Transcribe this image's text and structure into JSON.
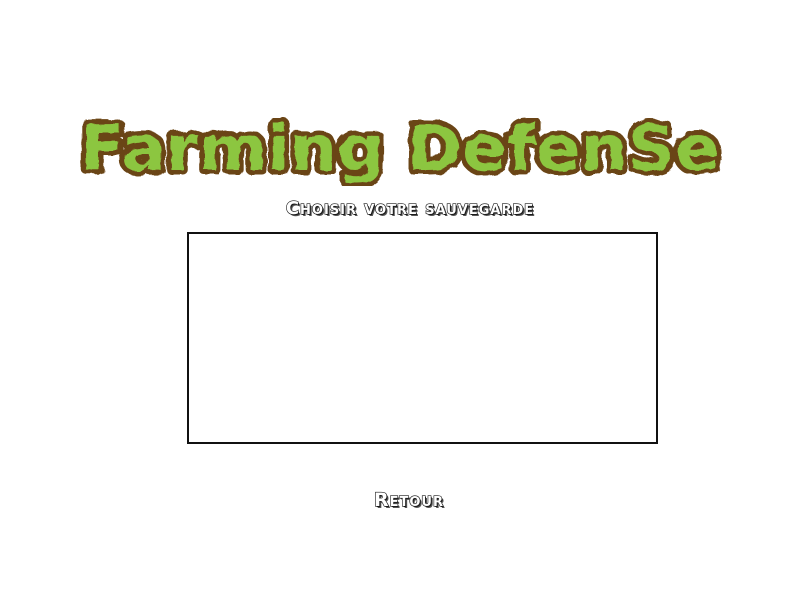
{
  "game": {
    "title": "Farming DefenSe",
    "title_colors": {
      "fill": "#8cc63f",
      "outline": "#6b4416"
    }
  },
  "load_menu": {
    "subtitle": "Choisir votre sauvegarde",
    "save_slots": [],
    "back_label": "Retour"
  }
}
